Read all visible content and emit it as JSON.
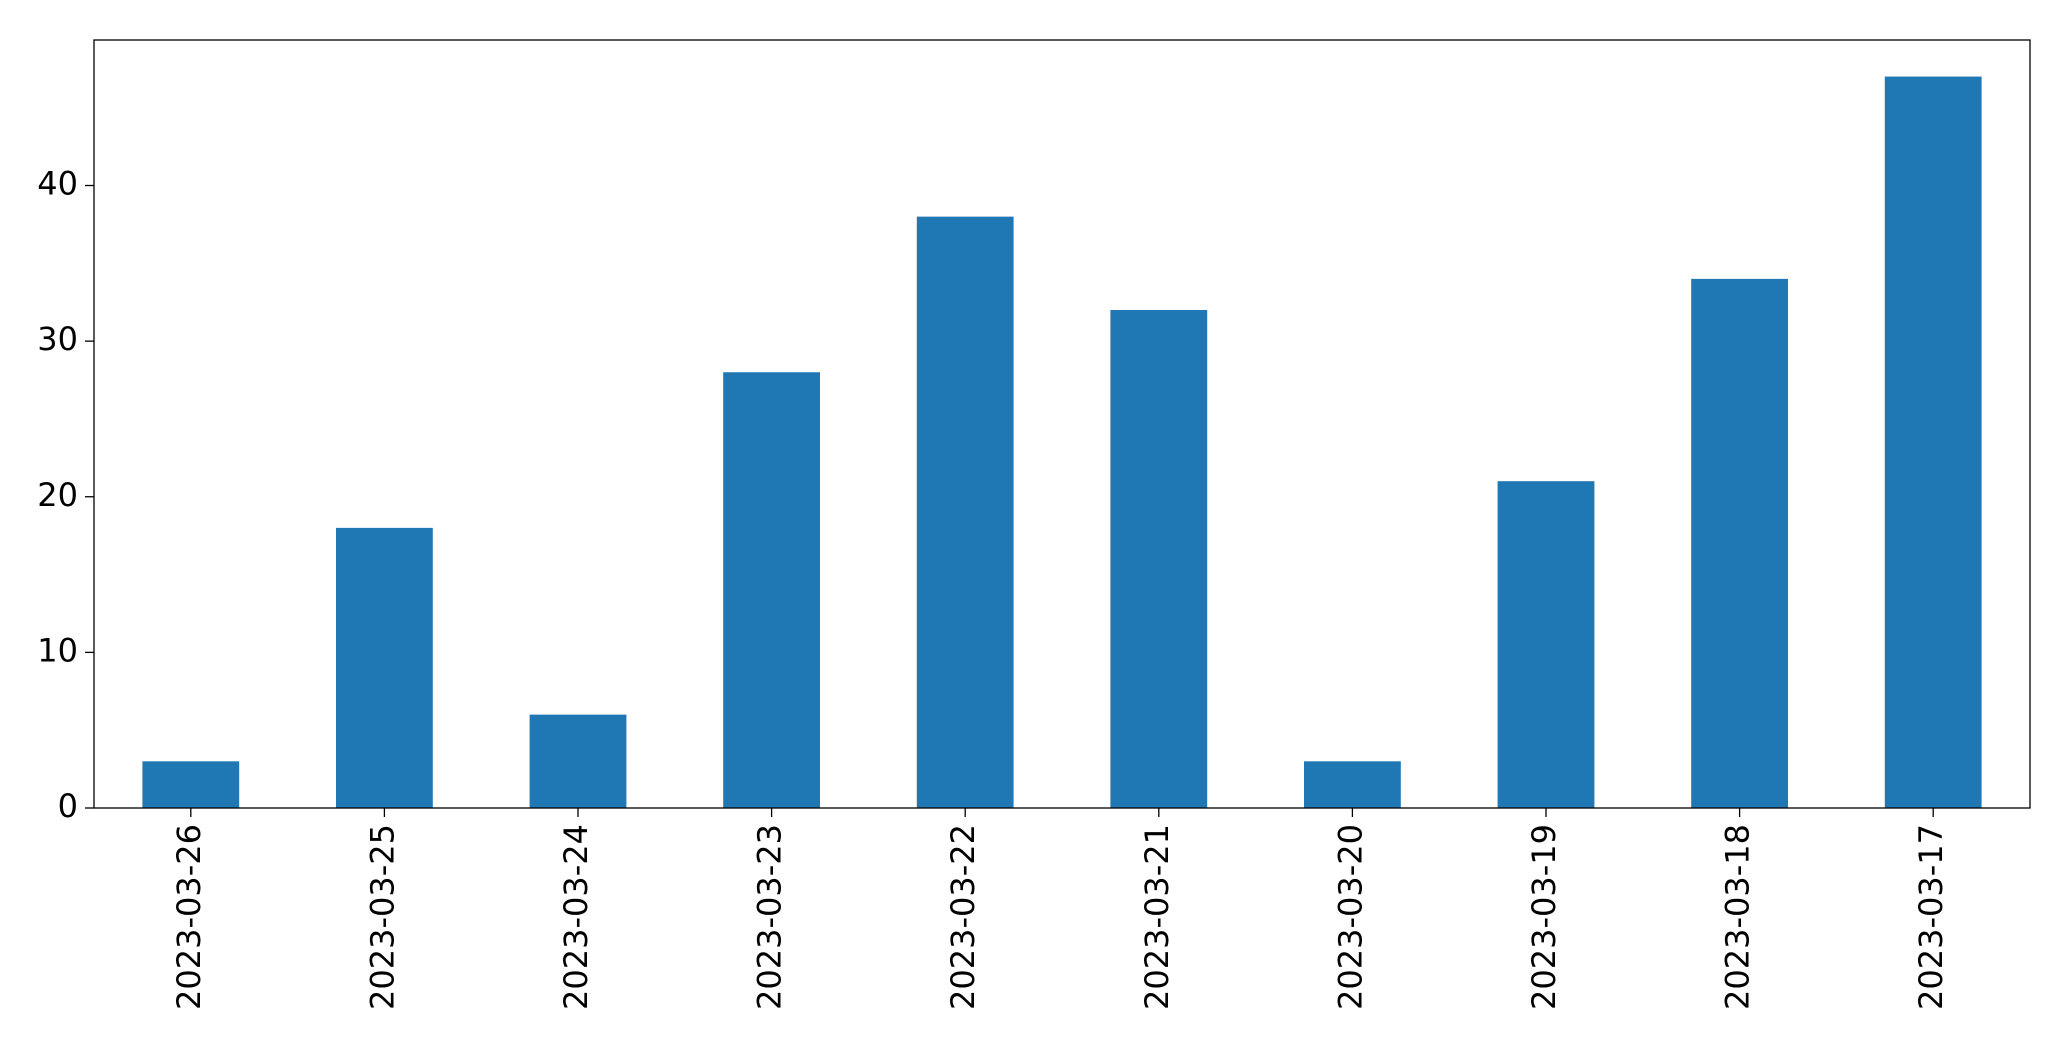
{
  "chart_data": {
    "type": "bar",
    "categories": [
      "2023-03-26",
      "2023-03-25",
      "2023-03-24",
      "2023-03-23",
      "2023-03-22",
      "2023-03-21",
      "2023-03-20",
      "2023-03-19",
      "2023-03-18",
      "2023-03-17"
    ],
    "values": [
      3,
      18,
      6,
      28,
      38,
      32,
      3,
      21,
      34,
      47
    ],
    "color": "#1f77b4",
    "ylim": [
      0,
      49.35
    ],
    "yticks": [
      0,
      10,
      20,
      30,
      40
    ],
    "grid": false
  }
}
